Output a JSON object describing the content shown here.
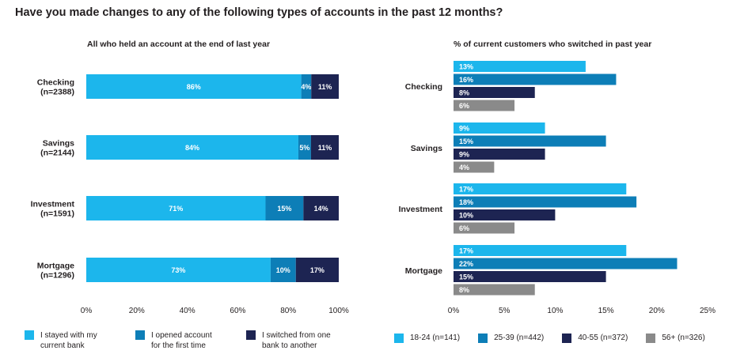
{
  "title": "Have you made changes to any of the following types of accounts in the past 12 months?",
  "colors": {
    "light_blue": "#1cb6ec",
    "mid_blue": "#0d7eb7",
    "navy": "#1d2452",
    "grey": "#8a8a8a",
    "text": "#231f20"
  },
  "chart_data": [
    {
      "type": "bar",
      "orientation": "horizontal",
      "stacked": true,
      "subtitle": "All who held an account at the end of last year",
      "categories": [
        "Checking (n=2388)",
        "Savings (n=2144)",
        "Investment (n=1591)",
        "Mortgage (n=1296)"
      ],
      "category_lines": [
        [
          "Checking",
          "(n=2388)"
        ],
        [
          "Savings",
          "(n=2144)"
        ],
        [
          "Investment",
          "(n=1591)"
        ],
        [
          "Mortgage",
          "(n=1296)"
        ]
      ],
      "series": [
        {
          "name": "I stayed with my current bank",
          "color": "#1cb6ec",
          "values": [
            86,
            84,
            71,
            73
          ],
          "labels": [
            "86%",
            "84%",
            "71%",
            "73%"
          ]
        },
        {
          "name": "I opened account for the first time",
          "color": "#0d7eb7",
          "values": [
            4,
            5,
            15,
            10
          ],
          "labels": [
            "4%",
            "5%",
            "15%",
            "10%"
          ]
        },
        {
          "name": "I switched from one bank to another",
          "color": "#1d2452",
          "values": [
            11,
            11,
            14,
            17
          ],
          "labels": [
            "11%",
            "11%",
            "14%",
            "17%"
          ]
        }
      ],
      "xlim": [
        0,
        100
      ],
      "xticks": [
        "0%",
        "20%",
        "40%",
        "60%",
        "80%",
        "100%"
      ]
    },
    {
      "type": "bar",
      "orientation": "horizontal",
      "stacked": false,
      "subtitle": "% of current customers who switched in past year",
      "categories": [
        "Checking",
        "Savings",
        "Investment",
        "Mortgage"
      ],
      "series": [
        {
          "name": "18-24 (n=141)",
          "color": "#1cb6ec",
          "values": [
            13,
            9,
            17,
            17
          ],
          "labels": [
            "13%",
            "9%",
            "17%",
            "17%"
          ]
        },
        {
          "name": "25-39 (n=442)",
          "color": "#0d7eb7",
          "values": [
            16,
            15,
            18,
            22
          ],
          "labels": [
            "16%",
            "15%",
            "18%",
            "22%"
          ]
        },
        {
          "name": "40-55 (n=372)",
          "color": "#1d2452",
          "values": [
            8,
            9,
            10,
            15
          ],
          "labels": [
            "8%",
            "9%",
            "10%",
            "15%"
          ]
        },
        {
          "name": "56+ (n=326)",
          "color": "#8a8a8a",
          "values": [
            6,
            4,
            6,
            8
          ],
          "labels": [
            "6%",
            "4%",
            "6%",
            "8%"
          ]
        }
      ],
      "xlim": [
        0,
        25
      ],
      "xticks": [
        "0%",
        "5%",
        "10%",
        "15%",
        "20%",
        "25%"
      ]
    }
  ],
  "legend_left": [
    {
      "line1": "I stayed with my",
      "line2": "current bank",
      "color": "#1cb6ec"
    },
    {
      "line1": "I opened account",
      "line2": "for the first time",
      "color": "#0d7eb7"
    },
    {
      "line1": "I switched from one",
      "line2": "bank to another",
      "color": "#1d2452"
    }
  ],
  "legend_right": [
    {
      "label": "18-24 (n=141)",
      "color": "#1cb6ec"
    },
    {
      "label": "25-39 (n=442)",
      "color": "#0d7eb7"
    },
    {
      "label": "40-55 (n=372)",
      "color": "#1d2452"
    },
    {
      "label": "56+ (n=326)",
      "color": "#8a8a8a"
    }
  ]
}
